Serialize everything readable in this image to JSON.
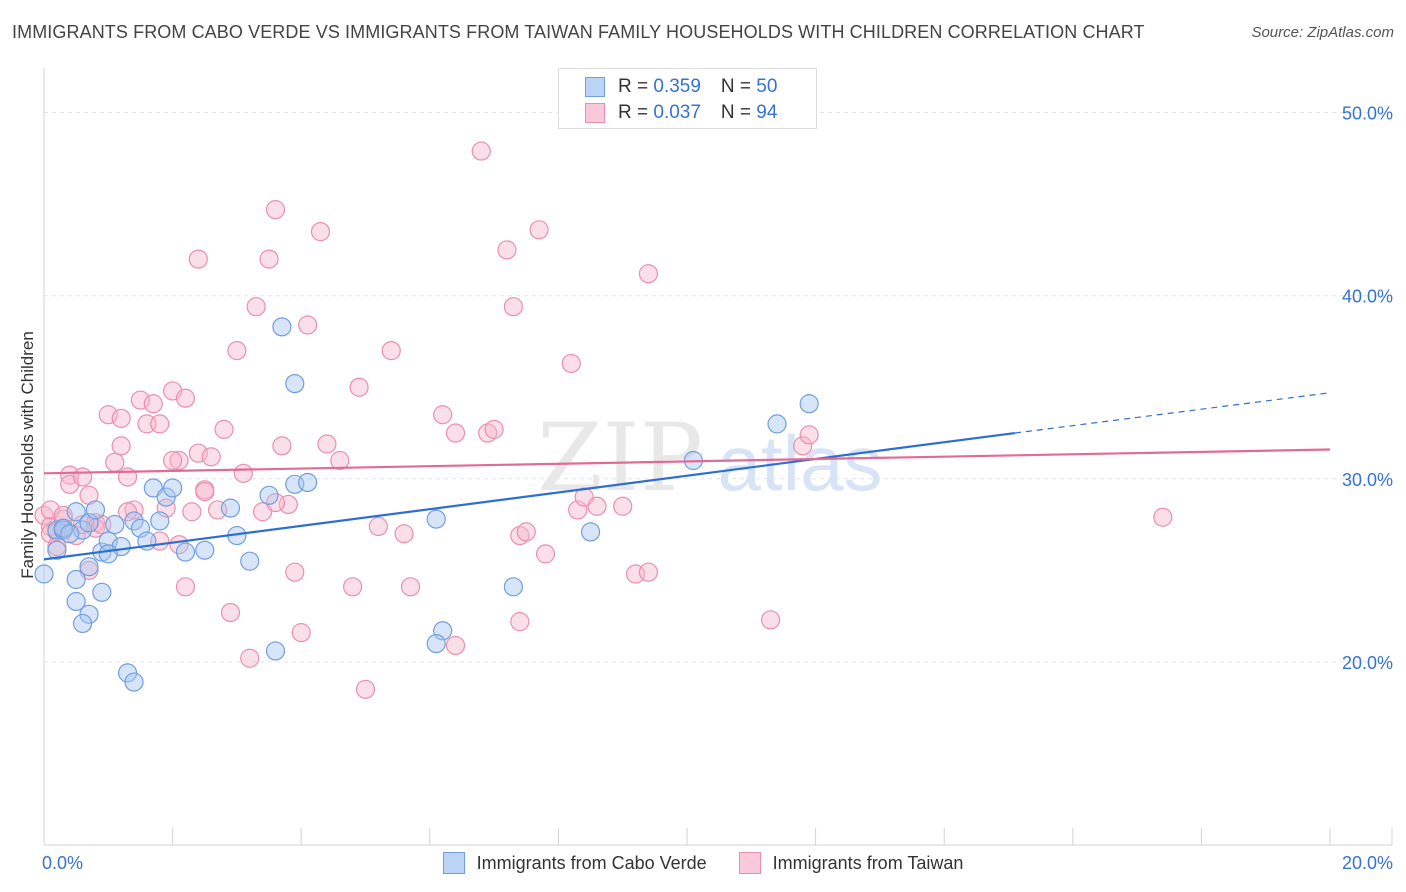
{
  "title": "IMMIGRANTS FROM CABO VERDE VS IMMIGRANTS FROM TAIWAN FAMILY HOUSEHOLDS WITH CHILDREN CORRELATION CHART",
  "source": "Source: ZipAtlas.com",
  "watermark": {
    "part1": "ZIP",
    "part2": "atlas"
  },
  "legend_top": [
    {
      "r_label": "R = ",
      "r_value": "0.359",
      "n_label": "N = ",
      "n_value": "50"
    },
    {
      "r_label": "R = ",
      "r_value": "0.037",
      "n_label": "N = ",
      "n_value": "94"
    }
  ],
  "colors": {
    "blue_fill": "#a9c6f0",
    "blue_stroke": "#6f9fe0",
    "blue_line": "#2c6fd1",
    "pink_fill": "#f7b9cd",
    "pink_stroke": "#ea8fae",
    "pink_line": "#e36a93",
    "tick_label": "#3572d6",
    "grid": "#dfe3ea"
  },
  "chart_data": {
    "type": "scatter",
    "title": "IMMIGRANTS FROM CABO VERDE VS IMMIGRANTS FROM TAIWAN FAMILY HOUSEHOLDS WITH CHILDREN CORRELATION CHART",
    "xlabel": "",
    "ylabel": "Family Households with Children",
    "xlim": [
      0,
      20
    ],
    "ylim": [
      10,
      52
    ],
    "x_tick_labels": [
      "0.0%",
      "20.0%"
    ],
    "y_ticks": [
      20,
      30,
      40,
      50
    ],
    "y_tick_labels": [
      "20.0%",
      "30.0%",
      "40.0%",
      "50.0%"
    ],
    "grid": true,
    "legend_position": "top-center",
    "series": [
      {
        "name": "Immigrants from Cabo Verde",
        "color": "blue",
        "R": 0.359,
        "N": 50,
        "trend": {
          "x0": 0,
          "y0": 25.6,
          "x1": 15.1,
          "y1": 32.5,
          "dash_to_x": 20,
          "dash_to_y": 34.7
        },
        "points": [
          [
            0.0,
            24.8
          ],
          [
            0.2,
            27.2
          ],
          [
            0.3,
            27.3
          ],
          [
            0.3,
            27.2
          ],
          [
            0.2,
            26.1
          ],
          [
            0.3,
            27.3
          ],
          [
            0.5,
            28.2
          ],
          [
            0.6,
            27.2
          ],
          [
            0.5,
            23.3
          ],
          [
            0.7,
            27.6
          ],
          [
            0.7,
            25.2
          ],
          [
            0.8,
            28.3
          ],
          [
            0.5,
            24.5
          ],
          [
            0.7,
            22.6
          ],
          [
            0.9,
            26.0
          ],
          [
            0.9,
            23.8
          ],
          [
            1.0,
            26.6
          ],
          [
            1.1,
            27.5
          ],
          [
            1.2,
            26.3
          ],
          [
            1.4,
            27.7
          ],
          [
            1.3,
            19.4
          ],
          [
            1.4,
            18.9
          ],
          [
            1.5,
            27.3
          ],
          [
            1.6,
            26.6
          ],
          [
            1.7,
            29.5
          ],
          [
            1.8,
            27.7
          ],
          [
            1.9,
            29.0
          ],
          [
            2.0,
            29.5
          ],
          [
            2.2,
            26.0
          ],
          [
            2.5,
            26.1
          ],
          [
            2.9,
            28.4
          ],
          [
            3.0,
            26.9
          ],
          [
            3.2,
            25.5
          ],
          [
            3.5,
            29.1
          ],
          [
            3.6,
            20.6
          ],
          [
            3.7,
            38.3
          ],
          [
            3.9,
            35.2
          ],
          [
            3.9,
            29.7
          ],
          [
            4.1,
            29.8
          ],
          [
            6.1,
            27.8
          ],
          [
            6.2,
            21.7
          ],
          [
            6.1,
            21.0
          ],
          [
            7.3,
            24.1
          ],
          [
            8.5,
            27.1
          ],
          [
            10.1,
            31.0
          ],
          [
            11.4,
            33.0
          ],
          [
            11.9,
            34.1
          ],
          [
            0.4,
            27.0
          ],
          [
            0.6,
            22.1
          ],
          [
            1.0,
            25.9
          ]
        ]
      },
      {
        "name": "Immigrants from Taiwan",
        "color": "pink",
        "R": 0.037,
        "N": 94,
        "trend": {
          "x0": 0,
          "y0": 30.3,
          "x1": 20,
          "y1": 31.6
        },
        "points": [
          [
            0.0,
            28.0
          ],
          [
            0.1,
            27.4
          ],
          [
            0.1,
            27.0
          ],
          [
            0.2,
            27.1
          ],
          [
            0.2,
            26.3
          ],
          [
            0.3,
            27.8
          ],
          [
            0.4,
            30.2
          ],
          [
            0.4,
            29.7
          ],
          [
            0.5,
            26.9
          ],
          [
            0.6,
            27.5
          ],
          [
            0.6,
            30.1
          ],
          [
            0.7,
            29.1
          ],
          [
            0.7,
            25.0
          ],
          [
            0.8,
            27.6
          ],
          [
            0.8,
            27.3
          ],
          [
            1.0,
            33.5
          ],
          [
            1.1,
            30.9
          ],
          [
            1.2,
            33.3
          ],
          [
            1.2,
            31.8
          ],
          [
            1.3,
            30.1
          ],
          [
            1.4,
            28.3
          ],
          [
            1.5,
            34.3
          ],
          [
            1.6,
            33.0
          ],
          [
            1.7,
            34.1
          ],
          [
            1.8,
            33.0
          ],
          [
            1.9,
            28.4
          ],
          [
            2.0,
            34.8
          ],
          [
            2.1,
            26.4
          ],
          [
            2.1,
            31.0
          ],
          [
            2.2,
            34.4
          ],
          [
            2.2,
            24.1
          ],
          [
            2.3,
            28.2
          ],
          [
            2.4,
            31.4
          ],
          [
            2.5,
            29.4
          ],
          [
            2.6,
            31.2
          ],
          [
            2.7,
            28.3
          ],
          [
            2.8,
            32.7
          ],
          [
            2.9,
            22.7
          ],
          [
            3.0,
            37.0
          ],
          [
            3.1,
            30.3
          ],
          [
            3.2,
            20.2
          ],
          [
            3.3,
            39.4
          ],
          [
            3.4,
            28.2
          ],
          [
            3.5,
            42.0
          ],
          [
            3.6,
            44.7
          ],
          [
            3.7,
            31.8
          ],
          [
            3.8,
            28.6
          ],
          [
            3.9,
            24.9
          ],
          [
            4.0,
            21.6
          ],
          [
            4.1,
            38.4
          ],
          [
            4.3,
            43.5
          ],
          [
            4.4,
            31.9
          ],
          [
            4.6,
            31.0
          ],
          [
            4.8,
            24.1
          ],
          [
            4.9,
            35.0
          ],
          [
            5.0,
            18.5
          ],
          [
            5.2,
            27.4
          ],
          [
            5.4,
            37.0
          ],
          [
            5.6,
            27.0
          ],
          [
            5.7,
            24.1
          ],
          [
            6.2,
            33.5
          ],
          [
            6.4,
            32.5
          ],
          [
            6.8,
            47.9
          ],
          [
            6.9,
            32.5
          ],
          [
            7.0,
            32.7
          ],
          [
            7.2,
            42.5
          ],
          [
            7.3,
            39.4
          ],
          [
            7.4,
            22.2
          ],
          [
            7.4,
            26.9
          ],
          [
            7.5,
            27.1
          ],
          [
            7.7,
            43.6
          ],
          [
            7.8,
            25.9
          ],
          [
            8.2,
            36.3
          ],
          [
            8.3,
            28.3
          ],
          [
            8.4,
            29.0
          ],
          [
            8.6,
            28.5
          ],
          [
            9.0,
            28.5
          ],
          [
            9.4,
            41.2
          ],
          [
            9.2,
            24.8
          ],
          [
            9.4,
            24.9
          ],
          [
            11.3,
            22.3
          ],
          [
            11.8,
            31.8
          ],
          [
            11.9,
            32.4
          ],
          [
            17.4,
            27.9
          ],
          [
            0.1,
            28.3
          ],
          [
            0.3,
            28.0
          ],
          [
            1.3,
            28.2
          ],
          [
            2.0,
            31.0
          ],
          [
            2.4,
            42.0
          ],
          [
            3.6,
            28.7
          ],
          [
            6.4,
            20.9
          ],
          [
            0.9,
            27.5
          ],
          [
            1.8,
            26.6
          ],
          [
            2.5,
            29.3
          ]
        ]
      }
    ]
  },
  "legend_bottom": [
    {
      "label": "Immigrants from Cabo Verde",
      "color": "blue"
    },
    {
      "label": "Immigrants from Taiwan",
      "color": "pink"
    }
  ]
}
